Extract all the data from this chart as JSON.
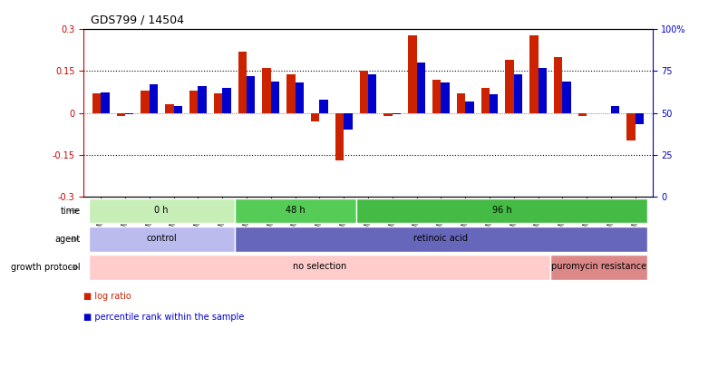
{
  "title": "GDS799 / 14504",
  "samples": [
    "GSM25978",
    "GSM25979",
    "GSM26006",
    "GSM26007",
    "GSM26008",
    "GSM26009",
    "GSM26010",
    "GSM26011",
    "GSM26012",
    "GSM26013",
    "GSM26014",
    "GSM26015",
    "GSM26016",
    "GSM26017",
    "GSM26018",
    "GSM26019",
    "GSM26020",
    "GSM26021",
    "GSM26022",
    "GSM26023",
    "GSM26024",
    "GSM26025",
    "GSM26026"
  ],
  "log_ratio": [
    0.07,
    -0.01,
    0.08,
    0.03,
    0.08,
    0.07,
    0.22,
    0.16,
    0.14,
    -0.03,
    -0.17,
    0.15,
    -0.01,
    0.28,
    0.12,
    0.07,
    0.09,
    0.19,
    0.28,
    0.2,
    -0.01,
    0.0,
    -0.1
  ],
  "percentile_rank": [
    62,
    49,
    67,
    54,
    66,
    65,
    72,
    69,
    68,
    58,
    40,
    73,
    49,
    80,
    68,
    57,
    61,
    73,
    77,
    69,
    50,
    54,
    43
  ],
  "ylim_left": [
    -0.3,
    0.3
  ],
  "ylim_right": [
    0,
    100
  ],
  "yticks_left": [
    -0.3,
    -0.15,
    0.0,
    0.15,
    0.3
  ],
  "yticks_right": [
    0,
    25,
    50,
    75,
    100
  ],
  "ytick_labels_left": [
    "-0.3",
    "-0.15",
    "0",
    "0.15",
    "0.3"
  ],
  "ytick_labels_right": [
    "0",
    "25",
    "50",
    "75",
    "100%"
  ],
  "hline_values": [
    0.15,
    -0.15
  ],
  "bar_color_red": "#cc2200",
  "bar_color_blue": "#0000cc",
  "bar_width": 0.35,
  "time_groups": [
    {
      "label": "0 h",
      "start": 0,
      "end": 5,
      "color": "#c8eeb8"
    },
    {
      "label": "48 h",
      "start": 6,
      "end": 10,
      "color": "#55cc55"
    },
    {
      "label": "96 h",
      "start": 11,
      "end": 22,
      "color": "#44bb44"
    }
  ],
  "agent_groups": [
    {
      "label": "control",
      "start": 0,
      "end": 5,
      "color": "#bbbbee"
    },
    {
      "label": "retinoic acid",
      "start": 6,
      "end": 22,
      "color": "#6666bb"
    }
  ],
  "growth_groups": [
    {
      "label": "no selection",
      "start": 0,
      "end": 18,
      "color": "#ffcccc"
    },
    {
      "label": "puromycin resistance",
      "start": 19,
      "end": 22,
      "color": "#dd8888"
    }
  ],
  "legend_labels": [
    "log ratio",
    "percentile rank within the sample"
  ],
  "legend_colors": [
    "#cc2200",
    "#0000cc"
  ]
}
